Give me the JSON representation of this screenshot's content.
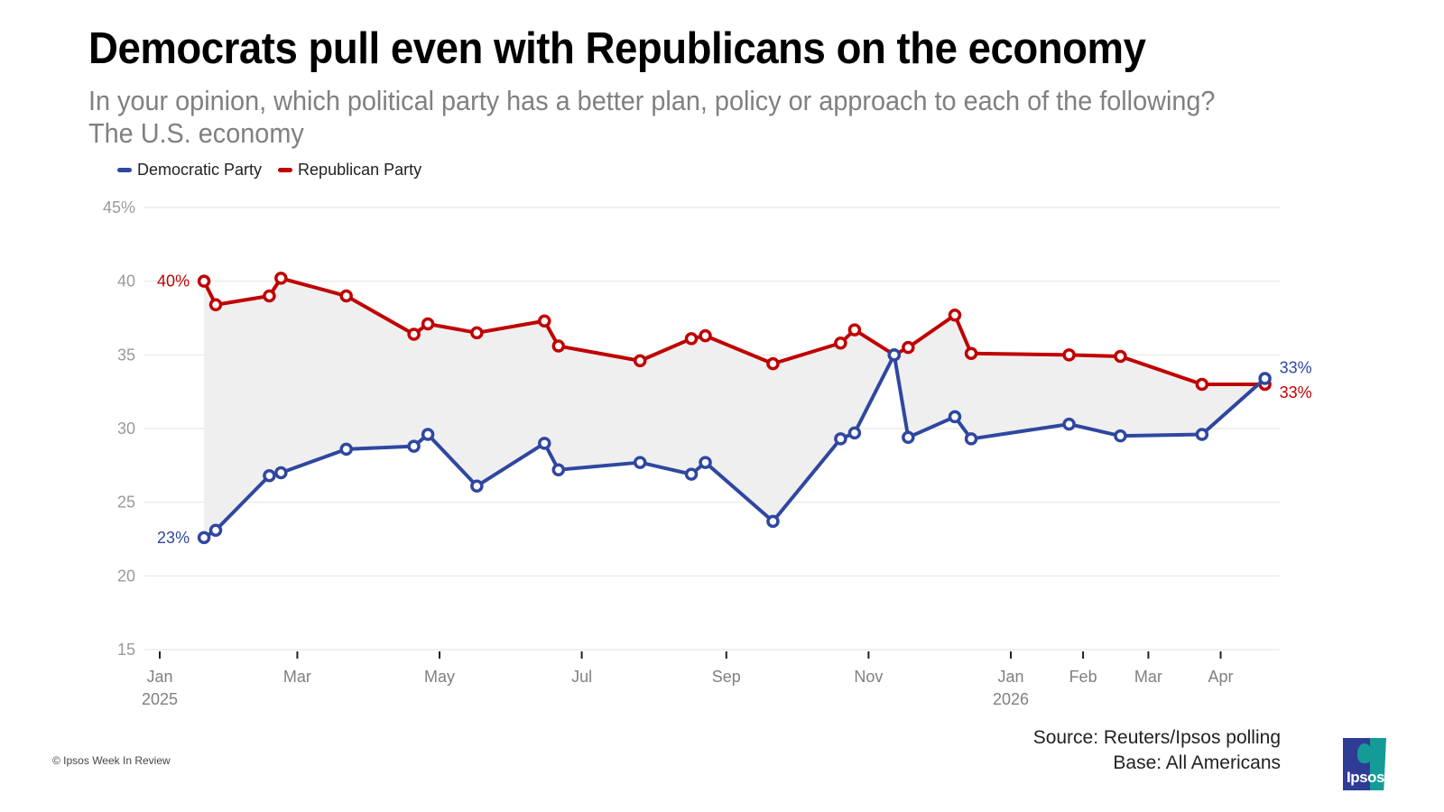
{
  "header": {
    "title": "Democrats pull even with Republicans on the economy",
    "subtitle_line1": "In your opinion, which political party has a better plan, policy or approach to each of the following?",
    "subtitle_line2": "The U.S. economy"
  },
  "footer": {
    "source": "Source: Reuters/Ipsos polling",
    "base": "Base: All Americans",
    "copyright": "© Ipsos Week In Review",
    "logo_text": "Ipsos"
  },
  "colors": {
    "democratic": "#2f47a0",
    "republican": "#c00000",
    "fill": "#efefef",
    "grid": "#ececec"
  },
  "chart_data": {
    "type": "line",
    "title": "Democrats pull even with Republicans on the economy",
    "subtitle": "In your opinion, which political party has a better plan, policy or approach to each of the following? The U.S. economy",
    "xlabel": "",
    "ylabel": "",
    "ylim": [
      15,
      45
    ],
    "yticks": [
      15,
      20,
      25,
      30,
      35,
      40,
      45
    ],
    "ytick_labels": [
      "15",
      "20",
      "25",
      "30",
      "35",
      "40",
      "45%"
    ],
    "xlim": [
      "2024-12-20",
      "2026-04-25"
    ],
    "xticks": [
      {
        "date": "2025-01-01",
        "label": "Jan",
        "sublabel": "2025"
      },
      {
        "date": "2025-03-01",
        "label": "Mar",
        "sublabel": ""
      },
      {
        "date": "2025-05-01",
        "label": "May",
        "sublabel": ""
      },
      {
        "date": "2025-07-01",
        "label": "Jul",
        "sublabel": ""
      },
      {
        "date": "2025-09-01",
        "label": "Sep",
        "sublabel": ""
      },
      {
        "date": "2025-11-01",
        "label": "Nov",
        "sublabel": ""
      },
      {
        "date": "2026-01-01",
        "label": "Jan",
        "sublabel": "2026"
      },
      {
        "date": "2026-02-01",
        "label": "Feb",
        "sublabel": ""
      },
      {
        "date": "2026-03-01",
        "label": "Mar",
        "sublabel": ""
      },
      {
        "date": "2026-04-01",
        "label": "Apr",
        "sublabel": ""
      }
    ],
    "grid": true,
    "legend_position": "top-left",
    "shaded_gap_between_series": true,
    "x": [
      "2025-01-20",
      "2025-01-25",
      "2025-02-17",
      "2025-02-22",
      "2025-03-22",
      "2025-04-20",
      "2025-04-26",
      "2025-05-17",
      "2025-06-15",
      "2025-06-21",
      "2025-07-26",
      "2025-08-17",
      "2025-08-23",
      "2025-09-21",
      "2025-10-20",
      "2025-10-26",
      "2025-11-12",
      "2025-11-18",
      "2025-12-08",
      "2025-12-15",
      "2026-01-26",
      "2026-02-17",
      "2026-03-24",
      "2026-04-20"
    ],
    "series": [
      {
        "name": "Democratic Party",
        "color": "#2f47a0",
        "values": [
          22.6,
          23.1,
          26.8,
          27.0,
          28.6,
          28.8,
          29.6,
          26.1,
          29.0,
          27.2,
          27.7,
          26.9,
          27.7,
          23.7,
          29.3,
          29.7,
          35.0,
          29.4,
          30.8,
          29.3,
          30.3,
          29.5,
          29.6,
          33.4
        ],
        "start_label": "23%",
        "end_label": "33%"
      },
      {
        "name": "Republican Party",
        "color": "#c00000",
        "values": [
          40.0,
          38.4,
          39.0,
          40.2,
          39.0,
          36.4,
          37.1,
          36.5,
          37.3,
          35.6,
          34.6,
          36.1,
          36.3,
          34.4,
          35.8,
          36.7,
          35.0,
          35.5,
          37.7,
          35.1,
          35.0,
          34.9,
          33.0,
          33.0
        ],
        "start_label": "40%",
        "end_label": "33%"
      }
    ]
  }
}
